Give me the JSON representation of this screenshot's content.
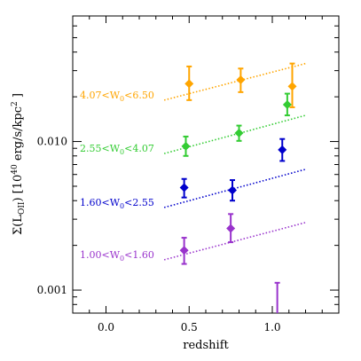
{
  "chart_data": {
    "type": "scatter",
    "xlabel": "redshift",
    "ylabel": "Σ(L",
    "ylabel_sub": "OII",
    "ylabel_rest": ") [10",
    "ylabel_sup": "40",
    "ylabel_end": " erg/s/kpc",
    "ylabel_sup2": "2",
    "ylabel_close": " ]",
    "xlim": [
      -0.2,
      1.4
    ],
    "ylim": [
      0.0007,
      0.07
    ],
    "yscale": "log",
    "x_ticks": [
      0.0,
      0.5,
      1.0
    ],
    "x_tick_labels": [
      "0.0",
      "0.5",
      "1.0"
    ],
    "y_ticks": [
      0.001,
      0.01
    ],
    "y_tick_labels": [
      "0.001",
      "0.010"
    ],
    "grid": false,
    "series": [
      {
        "color": "#FFA500",
        "label_pre": "4.07<W",
        "label_sub": "0",
        "label_post": "<6.50",
        "points": [
          {
            "x": 0.5,
            "y": 0.0245,
            "ylo": 0.019,
            "yhi": 0.032
          },
          {
            "x": 0.81,
            "y": 0.026,
            "ylo": 0.0215,
            "yhi": 0.031
          },
          {
            "x": 1.12,
            "y": 0.0235,
            "ylo": 0.017,
            "yhi": 0.0335
          }
        ],
        "fit": {
          "x0": 0.35,
          "y0": 0.019,
          "x1": 1.2,
          "y1": 0.0335
        }
      },
      {
        "color": "#33CC33",
        "label_pre": "2.55<W",
        "label_sub": "0",
        "label_post": "<4.07",
        "points": [
          {
            "x": 0.48,
            "y": 0.0093,
            "ylo": 0.008,
            "yhi": 0.0108
          },
          {
            "x": 0.8,
            "y": 0.0114,
            "ylo": 0.0101,
            "yhi": 0.0128
          },
          {
            "x": 1.09,
            "y": 0.0177,
            "ylo": 0.015,
            "yhi": 0.021
          }
        ],
        "fit": {
          "x0": 0.35,
          "y0": 0.0083,
          "x1": 1.2,
          "y1": 0.015
        }
      },
      {
        "color": "#0000CC",
        "label_pre": "1.60<W",
        "label_sub": "0",
        "label_post": "<2.55",
        "points": [
          {
            "x": 0.47,
            "y": 0.0049,
            "ylo": 0.0042,
            "yhi": 0.0056
          },
          {
            "x": 0.76,
            "y": 0.0047,
            "ylo": 0.004,
            "yhi": 0.0055
          },
          {
            "x": 1.06,
            "y": 0.0088,
            "ylo": 0.0074,
            "yhi": 0.0104
          }
        ],
        "fit": {
          "x0": 0.35,
          "y0": 0.0036,
          "x1": 1.2,
          "y1": 0.0065
        }
      },
      {
        "color": "#9933CC",
        "label_pre": "1.00<W",
        "label_sub": "0",
        "label_post": "<1.60",
        "points": [
          {
            "x": 0.47,
            "y": 0.00185,
            "ylo": 0.0015,
            "yhi": 0.00225
          },
          {
            "x": 0.75,
            "y": 0.0026,
            "ylo": 0.0021,
            "yhi": 0.00325
          },
          {
            "x": 1.03,
            "y": 0.001,
            "ylo": 0.0006,
            "yhi": 0.00112,
            "error_only": true
          }
        ],
        "fit": {
          "x0": 0.35,
          "y0": 0.0016,
          "x1": 1.2,
          "y1": 0.00285
        }
      }
    ]
  }
}
